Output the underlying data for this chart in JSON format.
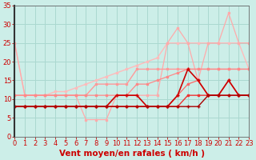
{
  "xlabel": "Vent moyen/en rafales ( km/h )",
  "bg_color": "#cceee8",
  "grid_color": "#aad8d0",
  "xlim": [
    0,
    23
  ],
  "ylim": [
    0,
    35
  ],
  "xticks": [
    0,
    1,
    2,
    3,
    4,
    5,
    6,
    7,
    8,
    9,
    10,
    11,
    12,
    13,
    14,
    15,
    16,
    17,
    18,
    19,
    20,
    21,
    22,
    23
  ],
  "yticks": [
    0,
    5,
    10,
    15,
    20,
    25,
    30,
    35
  ],
  "series": [
    {
      "x": [
        0,
        1,
        2,
        3,
        4,
        5,
        6,
        7,
        8,
        9,
        10,
        11,
        12,
        13,
        14,
        15,
        16,
        17,
        18,
        19,
        20,
        21,
        22,
        23
      ],
      "y": [
        25,
        11,
        11,
        11,
        12,
        12,
        13,
        14,
        15,
        16,
        17,
        18,
        19,
        20,
        21,
        25,
        25,
        25,
        25,
        25,
        25,
        25,
        25,
        18
      ],
      "color": "#ffbbbb",
      "lw": 1.0,
      "marker": "s",
      "ms": 2.0
    },
    {
      "x": [
        0,
        1,
        2,
        3,
        4,
        5,
        6,
        7,
        8,
        9,
        10,
        11,
        12,
        13,
        14,
        15,
        16,
        17,
        18,
        19,
        20,
        21,
        22,
        23
      ],
      "y": [
        25,
        11,
        11,
        11,
        11,
        11,
        11,
        4.5,
        4.5,
        4.5,
        11,
        11,
        11,
        11,
        11,
        25,
        29,
        25,
        15,
        25,
        25,
        33,
        25,
        25
      ],
      "color": "#ffaaaa",
      "lw": 0.9,
      "marker": "s",
      "ms": 1.8
    },
    {
      "x": [
        0,
        1,
        2,
        3,
        4,
        5,
        6,
        7,
        8,
        9,
        10,
        11,
        12,
        13,
        14,
        15,
        16,
        17,
        18,
        19,
        20,
        21,
        22,
        23
      ],
      "y": [
        11,
        11,
        11,
        11,
        11,
        11,
        11,
        11,
        14,
        14,
        14,
        14,
        18,
        18,
        18,
        18,
        18,
        18,
        18,
        18,
        18,
        18,
        18,
        18
      ],
      "color": "#ff9999",
      "lw": 1.0,
      "marker": "s",
      "ms": 2.0
    },
    {
      "x": [
        0,
        1,
        2,
        3,
        4,
        5,
        6,
        7,
        8,
        9,
        10,
        11,
        12,
        13,
        14,
        15,
        16,
        17,
        18,
        19,
        20,
        21,
        22,
        23
      ],
      "y": [
        11,
        11,
        11,
        11,
        11,
        11,
        11,
        11,
        11,
        11,
        11,
        11,
        14,
        14,
        15,
        16,
        17,
        18,
        18,
        18,
        18,
        18,
        18,
        18
      ],
      "color": "#ff8888",
      "lw": 0.9,
      "marker": "s",
      "ms": 1.8
    },
    {
      "x": [
        0,
        1,
        2,
        3,
        4,
        5,
        6,
        7,
        8,
        9,
        10,
        11,
        12,
        13,
        14,
        15,
        16,
        17,
        18,
        19,
        20,
        21,
        22,
        23
      ],
      "y": [
        8,
        8,
        8,
        8,
        8,
        8,
        8,
        8,
        8,
        8,
        8,
        8,
        8,
        8,
        8,
        8,
        11,
        14,
        15,
        11,
        11,
        15,
        11,
        11
      ],
      "color": "#ff6666",
      "lw": 0.9,
      "marker": "s",
      "ms": 2.0
    },
    {
      "x": [
        0,
        1,
        2,
        3,
        4,
        5,
        6,
        7,
        8,
        9,
        10,
        11,
        12,
        13,
        14,
        15,
        16,
        17,
        18,
        19,
        20,
        21,
        22,
        23
      ],
      "y": [
        8,
        8,
        8,
        8,
        8,
        8,
        8,
        8,
        8,
        8,
        8,
        8,
        8,
        8,
        8,
        8,
        8,
        11,
        11,
        11,
        11,
        11,
        11,
        11
      ],
      "color": "#ee3333",
      "lw": 1.0,
      "marker": "s",
      "ms": 2.0
    },
    {
      "x": [
        0,
        1,
        2,
        3,
        4,
        5,
        6,
        7,
        8,
        9,
        10,
        11,
        12,
        13,
        14,
        15,
        16,
        17,
        18,
        19,
        20,
        21,
        22,
        23
      ],
      "y": [
        8,
        8,
        8,
        8,
        8,
        8,
        8,
        8,
        8,
        8,
        11,
        11,
        11,
        8,
        8,
        8,
        11,
        18,
        15,
        11,
        11,
        15,
        11,
        11
      ],
      "color": "#cc0000",
      "lw": 1.2,
      "marker": "+",
      "ms": 3.5
    },
    {
      "x": [
        0,
        1,
        2,
        3,
        4,
        5,
        6,
        7,
        8,
        9,
        10,
        11,
        12,
        13,
        14,
        15,
        16,
        17,
        18,
        19,
        20,
        21,
        22,
        23
      ],
      "y": [
        8,
        8,
        8,
        8,
        8,
        8,
        8,
        8,
        8,
        8,
        8,
        8,
        8,
        8,
        8,
        8,
        8,
        8,
        8,
        11,
        11,
        11,
        11,
        11
      ],
      "color": "#aa0000",
      "lw": 1.0,
      "marker": "+",
      "ms": 3.0
    }
  ],
  "xlabel_color": "#cc0000",
  "xlabel_fontsize": 7.5,
  "tick_color": "#cc0000",
  "tick_fontsize": 6
}
